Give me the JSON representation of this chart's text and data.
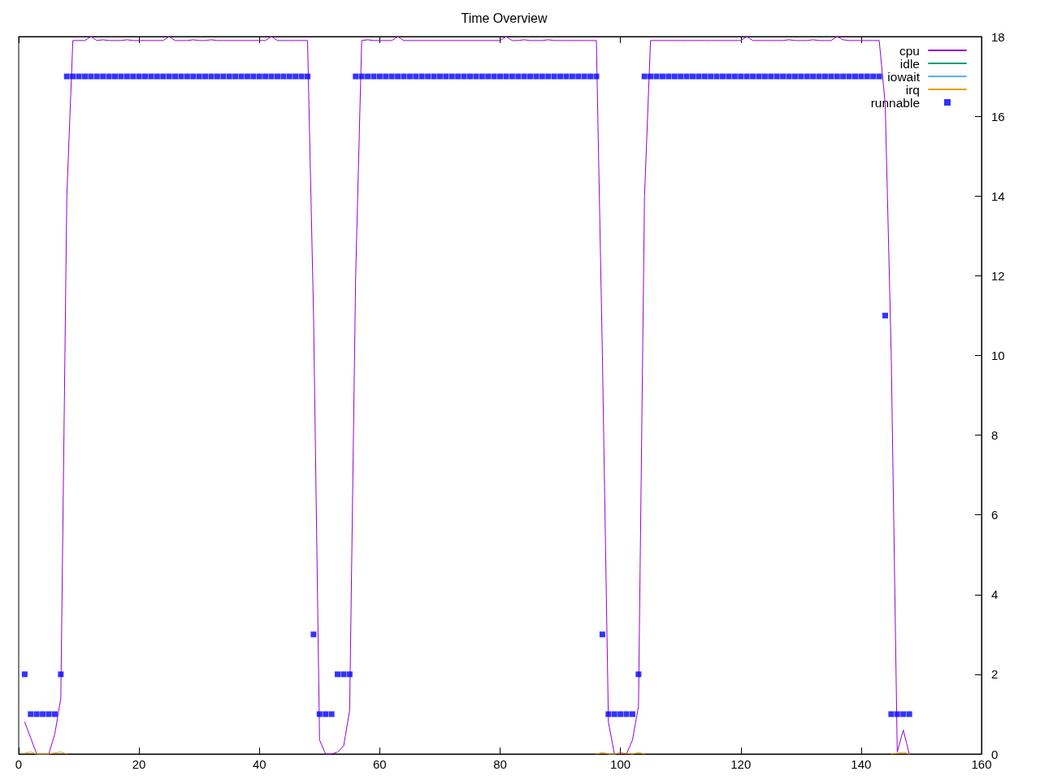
{
  "chart_data": {
    "type": "line",
    "title": "Time Overview",
    "x": [
      1,
      2,
      3,
      4,
      5,
      6,
      7,
      8,
      9,
      10,
      11,
      12,
      13,
      14,
      15,
      16,
      17,
      18,
      19,
      20,
      21,
      22,
      23,
      24,
      25,
      26,
      27,
      28,
      29,
      30,
      31,
      32,
      33,
      34,
      35,
      36,
      37,
      38,
      39,
      40,
      41,
      42,
      43,
      44,
      45,
      46,
      47,
      48,
      49,
      50,
      51,
      52,
      53,
      54,
      55,
      56,
      57,
      58,
      59,
      60,
      61,
      62,
      63,
      64,
      65,
      66,
      67,
      68,
      69,
      70,
      71,
      72,
      73,
      74,
      75,
      76,
      77,
      78,
      79,
      80,
      81,
      82,
      83,
      84,
      85,
      86,
      87,
      88,
      89,
      90,
      91,
      92,
      93,
      94,
      95,
      96,
      97,
      98,
      99,
      100,
      101,
      102,
      103,
      104,
      105,
      106,
      107,
      108,
      109,
      110,
      111,
      112,
      113,
      114,
      115,
      116,
      117,
      118,
      119,
      120,
      121,
      122,
      123,
      124,
      125,
      126,
      127,
      128,
      129,
      130,
      131,
      132,
      133,
      134,
      135,
      136,
      137,
      138,
      139,
      140,
      141,
      142,
      143,
      144,
      145,
      146,
      147,
      148
    ],
    "xlim": [
      0,
      160
    ],
    "xticks": [
      0,
      20,
      40,
      60,
      80,
      100,
      120,
      140,
      160
    ],
    "ylim": [
      0,
      18
    ],
    "yticks": [
      0,
      2,
      4,
      6,
      8,
      10,
      12,
      14,
      16,
      18
    ],
    "legend": "top right",
    "series": [
      {
        "name": "cpu",
        "color": "#9400d3",
        "values": [
          0.8,
          0.4,
          0,
          null,
          0,
          0.5,
          1.4,
          14,
          17.9,
          17.9,
          17.9,
          18,
          17.9,
          17.92,
          17.9,
          17.9,
          17.9,
          17.92,
          17.9,
          17.9,
          17.9,
          17.9,
          17.9,
          17.9,
          18,
          17.9,
          17.9,
          17.9,
          17.92,
          17.9,
          17.9,
          17.92,
          17.9,
          17.9,
          17.9,
          17.9,
          17.9,
          17.9,
          17.9,
          17.9,
          17.9,
          18,
          17.9,
          17.9,
          17.9,
          17.9,
          17.9,
          17.9,
          11,
          0.35,
          0,
          0,
          0.05,
          0.2,
          1.1,
          12,
          17.9,
          17.92,
          17.9,
          17.9,
          17.9,
          17.9,
          18,
          17.9,
          17.9,
          17.9,
          17.9,
          17.9,
          17.9,
          17.9,
          17.9,
          17.9,
          17.9,
          17.9,
          17.9,
          17.9,
          17.9,
          17.9,
          17.9,
          17.9,
          18,
          17.9,
          17.9,
          17.92,
          17.9,
          17.9,
          17.9,
          17.92,
          17.9,
          17.9,
          17.9,
          17.9,
          17.9,
          17.9,
          17.9,
          17.9,
          10,
          0.8,
          0,
          0.03,
          0,
          0.35,
          1.2,
          14,
          17.9,
          17.9,
          17.9,
          17.9,
          17.9,
          17.9,
          17.9,
          17.9,
          17.9,
          17.9,
          17.9,
          17.9,
          17.9,
          17.9,
          17.9,
          17.9,
          18,
          17.9,
          17.9,
          17.9,
          17.9,
          17.9,
          17.9,
          17.92,
          17.9,
          17.9,
          17.9,
          17.92,
          17.9,
          17.9,
          17.9,
          18,
          17.92,
          17.9,
          17.9,
          17.9,
          17.9,
          17.9,
          17.9,
          16.3,
          10,
          0.05,
          0.6,
          0
        ]
      },
      {
        "name": "idle",
        "color": "#009e73",
        "values": [
          null,
          null,
          null,
          null,
          null,
          null,
          null,
          null,
          null,
          null,
          null,
          null,
          null,
          null,
          null,
          null,
          null,
          null,
          null,
          null,
          null,
          null,
          null,
          null,
          null,
          null,
          null,
          null,
          null,
          null,
          null,
          null,
          null,
          null,
          null,
          null,
          null,
          null,
          null,
          null,
          null,
          null,
          null,
          null,
          null,
          null,
          null,
          null,
          null,
          null,
          null,
          null,
          null,
          null,
          null,
          null,
          null,
          null,
          null,
          null,
          null,
          null,
          null,
          null,
          null,
          null,
          null,
          null,
          null,
          null,
          null,
          null,
          null,
          null,
          null,
          null,
          null,
          null,
          null,
          null,
          null,
          null,
          null,
          null,
          null,
          null,
          null,
          null,
          null,
          null,
          null,
          null,
          null,
          null,
          null,
          null,
          null,
          null,
          null,
          null,
          null,
          null,
          null,
          null,
          null,
          null,
          null,
          null,
          null,
          null,
          null,
          null,
          null,
          null,
          null,
          null,
          null,
          null,
          null,
          null,
          null,
          null,
          null,
          null,
          null,
          null,
          null,
          null,
          null,
          null,
          null,
          null,
          null,
          null,
          null,
          null,
          null,
          null,
          null,
          null,
          null,
          null,
          null,
          null,
          null,
          null,
          null,
          null
        ]
      },
      {
        "name": "iowait",
        "color": "#56b4e9",
        "values": [
          null,
          null,
          null,
          null,
          null,
          null,
          null,
          null,
          null,
          null,
          null,
          null,
          null,
          null,
          null,
          null,
          null,
          null,
          null,
          null,
          null,
          null,
          null,
          null,
          null,
          null,
          null,
          null,
          null,
          null,
          null,
          null,
          null,
          null,
          null,
          null,
          null,
          null,
          null,
          null,
          null,
          null,
          null,
          null,
          null,
          null,
          null,
          null,
          null,
          null,
          null,
          null,
          null,
          null,
          null,
          null,
          null,
          null,
          null,
          null,
          null,
          null,
          null,
          null,
          null,
          null,
          null,
          null,
          null,
          null,
          null,
          null,
          null,
          null,
          null,
          null,
          null,
          null,
          null,
          null,
          null,
          null,
          null,
          null,
          null,
          null,
          null,
          null,
          null,
          null,
          null,
          null,
          null,
          null,
          null,
          null,
          null,
          null,
          null,
          null,
          null,
          null,
          null,
          null,
          null,
          null,
          null,
          null,
          null,
          null,
          null,
          null,
          null,
          null,
          null,
          null,
          null,
          null,
          null,
          null,
          null,
          null,
          null,
          null,
          null,
          null,
          null,
          null,
          null,
          null,
          null,
          null,
          null,
          null,
          null,
          null,
          null,
          null,
          null,
          null,
          null,
          null,
          null,
          null,
          null,
          null,
          null,
          null
        ]
      },
      {
        "name": "irq",
        "color": "#e69f00",
        "x": [
          1,
          2,
          3,
          5,
          6,
          7,
          8,
          9,
          96,
          97,
          98,
          99,
          100,
          101,
          102,
          103,
          104,
          105,
          145,
          146,
          147,
          148
        ],
        "values": [
          0.02,
          0.05,
          0,
          0,
          0.03,
          0.05,
          0,
          null,
          0,
          0.04,
          0,
          0,
          0.02,
          0.02,
          0,
          0.04,
          0,
          null,
          0,
          0.02,
          0.04,
          0
        ]
      },
      {
        "name": "runnable",
        "type": "scatter",
        "marker": "square",
        "color": "#0000ff",
        "values": [
          2,
          1,
          1,
          1,
          1,
          1,
          2,
          17,
          17,
          17,
          17,
          17,
          17,
          17,
          17,
          17,
          17,
          17,
          17,
          17,
          17,
          17,
          17,
          17,
          17,
          17,
          17,
          17,
          17,
          17,
          17,
          17,
          17,
          17,
          17,
          17,
          17,
          17,
          17,
          17,
          17,
          17,
          17,
          17,
          17,
          17,
          17,
          17,
          3,
          1,
          1,
          1,
          2,
          2,
          2,
          17,
          17,
          17,
          17,
          17,
          17,
          17,
          17,
          17,
          17,
          17,
          17,
          17,
          17,
          17,
          17,
          17,
          17,
          17,
          17,
          17,
          17,
          17,
          17,
          17,
          17,
          17,
          17,
          17,
          17,
          17,
          17,
          17,
          17,
          17,
          17,
          17,
          17,
          17,
          17,
          17,
          3,
          1,
          1,
          1,
          1,
          1,
          2,
          17,
          17,
          17,
          17,
          17,
          17,
          17,
          17,
          17,
          17,
          17,
          17,
          17,
          17,
          17,
          17,
          17,
          17,
          17,
          17,
          17,
          17,
          17,
          17,
          17,
          17,
          17,
          17,
          17,
          17,
          17,
          17,
          17,
          17,
          17,
          17,
          17,
          17,
          17,
          17,
          11,
          1,
          1,
          1,
          1
        ]
      }
    ]
  }
}
